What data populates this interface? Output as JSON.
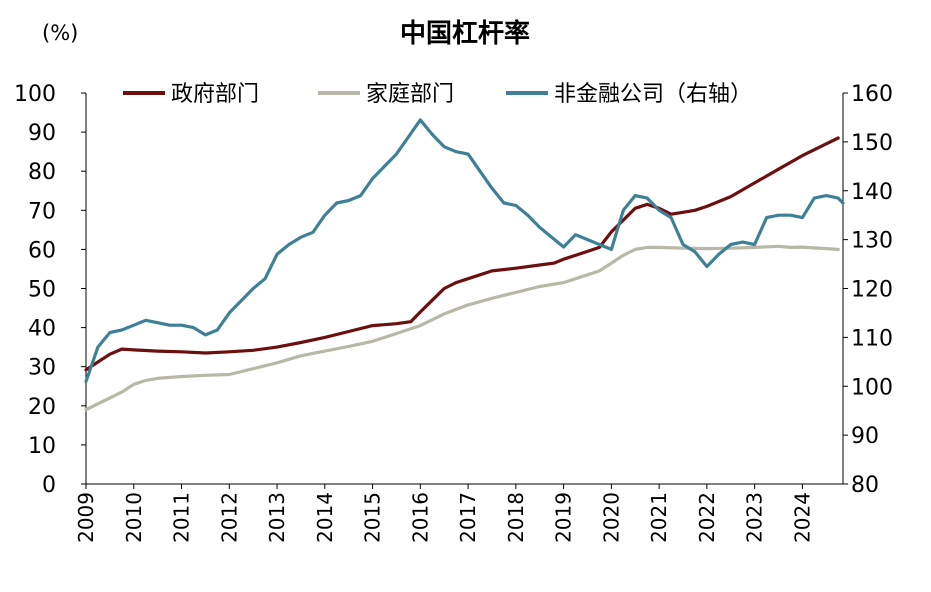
{
  "chart_data": {
    "type": "line",
    "title": "中国杠杆率",
    "y_unit": "(%)",
    "ylim_left": [
      0,
      100
    ],
    "yticks_left": [
      0,
      10,
      20,
      30,
      40,
      50,
      60,
      70,
      80,
      90,
      100
    ],
    "ylim_right": [
      80,
      160
    ],
    "yticks_right": [
      80,
      90,
      100,
      110,
      120,
      130,
      140,
      150,
      160
    ],
    "xlim": [
      2009.0,
      2024.85
    ],
    "x_ticks": [
      "2009",
      "2010",
      "2011",
      "2012",
      "2013",
      "2014",
      "2015",
      "2016",
      "2017",
      "2018",
      "2019",
      "2020",
      "2021",
      "2022",
      "2023",
      "2024"
    ],
    "grid": false,
    "legend_position": "top",
    "series": [
      {
        "name": "政府部门",
        "axis": "left",
        "color": "#6B0F0F",
        "points": [
          [
            2009.0,
            29.2
          ],
          [
            2009.25,
            31.2
          ],
          [
            2009.5,
            33.2
          ],
          [
            2009.75,
            34.5
          ],
          [
            2010.0,
            34.3
          ],
          [
            2010.5,
            34.0
          ],
          [
            2011.0,
            33.8
          ],
          [
            2011.5,
            33.5
          ],
          [
            2012.0,
            33.8
          ],
          [
            2012.5,
            34.2
          ],
          [
            2013.0,
            35.0
          ],
          [
            2013.5,
            36.2
          ],
          [
            2014.0,
            37.5
          ],
          [
            2014.5,
            39.0
          ],
          [
            2015.0,
            40.5
          ],
          [
            2015.5,
            41.0
          ],
          [
            2015.8,
            41.5
          ],
          [
            2016.0,
            44.0
          ],
          [
            2016.25,
            47.0
          ],
          [
            2016.5,
            50.0
          ],
          [
            2016.75,
            51.5
          ],
          [
            2017.0,
            52.5
          ],
          [
            2017.5,
            54.5
          ],
          [
            2018.0,
            55.2
          ],
          [
            2018.5,
            56.0
          ],
          [
            2018.8,
            56.5
          ],
          [
            2019.0,
            57.5
          ],
          [
            2019.5,
            59.5
          ],
          [
            2019.75,
            60.5
          ],
          [
            2020.0,
            64.5
          ],
          [
            2020.25,
            67.5
          ],
          [
            2020.5,
            70.5
          ],
          [
            2020.75,
            71.5
          ],
          [
            2021.0,
            70.5
          ],
          [
            2021.25,
            69.0
          ],
          [
            2021.5,
            69.5
          ],
          [
            2021.75,
            70.0
          ],
          [
            2022.0,
            71.0
          ],
          [
            2022.5,
            73.5
          ],
          [
            2023.0,
            77.0
          ],
          [
            2023.5,
            80.5
          ],
          [
            2024.0,
            84.0
          ],
          [
            2024.5,
            87.0
          ],
          [
            2024.75,
            88.5
          ]
        ]
      },
      {
        "name": "家庭部门",
        "axis": "left",
        "color": "#B9B7A7",
        "points": [
          [
            2009.0,
            19.0
          ],
          [
            2009.25,
            20.5
          ],
          [
            2009.5,
            22.0
          ],
          [
            2009.75,
            23.5
          ],
          [
            2010.0,
            25.5
          ],
          [
            2010.25,
            26.5
          ],
          [
            2010.5,
            27.0
          ],
          [
            2011.0,
            27.5
          ],
          [
            2011.5,
            27.8
          ],
          [
            2012.0,
            28.0
          ],
          [
            2012.5,
            29.5
          ],
          [
            2013.0,
            31.0
          ],
          [
            2013.5,
            32.8
          ],
          [
            2014.0,
            34.0
          ],
          [
            2014.5,
            35.2
          ],
          [
            2015.0,
            36.5
          ],
          [
            2015.5,
            38.5
          ],
          [
            2016.0,
            40.5
          ],
          [
            2016.5,
            43.5
          ],
          [
            2017.0,
            45.8
          ],
          [
            2017.5,
            47.5
          ],
          [
            2018.0,
            49.0
          ],
          [
            2018.5,
            50.5
          ],
          [
            2019.0,
            51.5
          ],
          [
            2019.5,
            53.5
          ],
          [
            2019.75,
            54.5
          ],
          [
            2020.0,
            56.5
          ],
          [
            2020.25,
            58.5
          ],
          [
            2020.5,
            60.0
          ],
          [
            2020.75,
            60.5
          ],
          [
            2021.0,
            60.5
          ],
          [
            2021.5,
            60.3
          ],
          [
            2022.0,
            60.2
          ],
          [
            2022.5,
            60.3
          ],
          [
            2023.0,
            60.5
          ],
          [
            2023.5,
            60.8
          ],
          [
            2023.75,
            60.5
          ],
          [
            2024.0,
            60.6
          ],
          [
            2024.5,
            60.2
          ],
          [
            2024.75,
            60.0
          ]
        ]
      },
      {
        "name": "非金融公司（右轴）",
        "axis": "right",
        "color": "#3E8196",
        "points": [
          [
            2009.0,
            101.0
          ],
          [
            2009.25,
            108.0
          ],
          [
            2009.5,
            111.0
          ],
          [
            2009.75,
            111.5
          ],
          [
            2010.0,
            112.5
          ],
          [
            2010.25,
            113.5
          ],
          [
            2010.5,
            113.0
          ],
          [
            2010.75,
            112.5
          ],
          [
            2011.0,
            112.5
          ],
          [
            2011.25,
            112.0
          ],
          [
            2011.5,
            110.5
          ],
          [
            2011.75,
            111.5
          ],
          [
            2012.0,
            115.0
          ],
          [
            2012.25,
            117.5
          ],
          [
            2012.5,
            120.0
          ],
          [
            2012.75,
            122.0
          ],
          [
            2013.0,
            127.0
          ],
          [
            2013.25,
            129.0
          ],
          [
            2013.5,
            130.5
          ],
          [
            2013.75,
            131.5
          ],
          [
            2014.0,
            135.0
          ],
          [
            2014.25,
            137.5
          ],
          [
            2014.5,
            138.0
          ],
          [
            2014.75,
            139.0
          ],
          [
            2015.0,
            142.5
          ],
          [
            2015.25,
            145.0
          ],
          [
            2015.5,
            147.5
          ],
          [
            2015.75,
            151.0
          ],
          [
            2016.0,
            154.5
          ],
          [
            2016.25,
            151.5
          ],
          [
            2016.5,
            149.0
          ],
          [
            2016.75,
            148.0
          ],
          [
            2017.0,
            147.5
          ],
          [
            2017.25,
            144.0
          ],
          [
            2017.5,
            140.5
          ],
          [
            2017.75,
            137.5
          ],
          [
            2018.0,
            137.0
          ],
          [
            2018.25,
            135.0
          ],
          [
            2018.5,
            132.5
          ],
          [
            2018.75,
            130.5
          ],
          [
            2019.0,
            128.5
          ],
          [
            2019.25,
            131.0
          ],
          [
            2019.5,
            130.0
          ],
          [
            2019.75,
            129.0
          ],
          [
            2020.0,
            128.0
          ],
          [
            2020.25,
            136.0
          ],
          [
            2020.5,
            139.0
          ],
          [
            2020.75,
            138.5
          ],
          [
            2021.0,
            136.0
          ],
          [
            2021.25,
            134.5
          ],
          [
            2021.5,
            129.0
          ],
          [
            2021.75,
            127.5
          ],
          [
            2022.0,
            124.5
          ],
          [
            2022.25,
            127.0
          ],
          [
            2022.5,
            129.0
          ],
          [
            2022.75,
            129.5
          ],
          [
            2023.0,
            129.0
          ],
          [
            2023.25,
            134.5
          ],
          [
            2023.5,
            135.0
          ],
          [
            2023.75,
            135.0
          ],
          [
            2024.0,
            134.5
          ],
          [
            2024.25,
            138.5
          ],
          [
            2024.5,
            139.0
          ],
          [
            2024.75,
            138.5
          ],
          [
            2024.85,
            137.5
          ]
        ]
      }
    ]
  }
}
